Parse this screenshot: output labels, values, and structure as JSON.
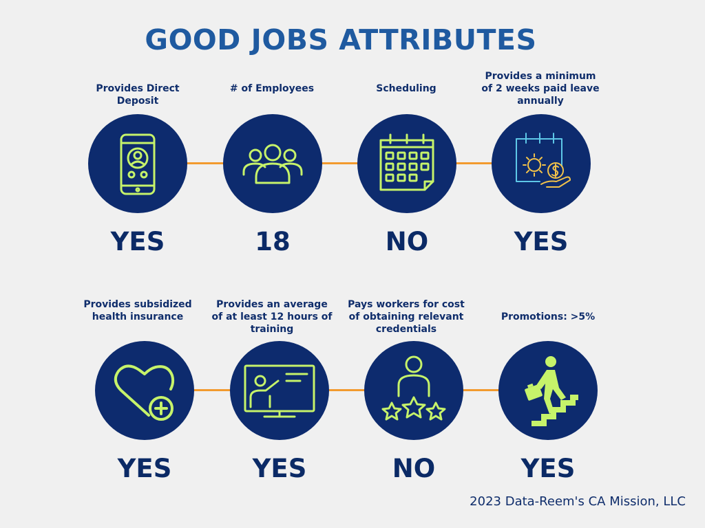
{
  "title": "GOOD JOBS ATTRIBUTES",
  "footer": "2023 Data-Reem's CA Mission, LLC",
  "colors": {
    "circle": "#0d2b6e",
    "icon": "#c6f36a",
    "connector": "#f29a2e",
    "title": "#1f5aa0",
    "text": "#0f2d6b"
  },
  "rows": [
    {
      "items": [
        {
          "label": "Provides Direct Deposit",
          "value": "YES",
          "icon": "phone-user-icon"
        },
        {
          "label": "# of Employees",
          "value": "18",
          "icon": "group-icon"
        },
        {
          "label": "Scheduling",
          "value": "NO",
          "icon": "calendar-icon"
        },
        {
          "label": "Provides a minimum of 2 weeks paid leave annually",
          "value": "YES",
          "icon": "paid-leave-icon"
        }
      ]
    },
    {
      "items": [
        {
          "label": "Provides subsidized health insurance",
          "value": "YES",
          "icon": "heart-plus-icon"
        },
        {
          "label": "Provides an average of at least 12 hours of training",
          "value": "YES",
          "icon": "presentation-icon"
        },
        {
          "label": "Pays workers for cost of obtaining relevant credentials",
          "value": "NO",
          "icon": "person-stars-icon"
        },
        {
          "label": "Promotions: >5%",
          "value": "YES",
          "icon": "stairs-climber-icon"
        }
      ]
    }
  ]
}
